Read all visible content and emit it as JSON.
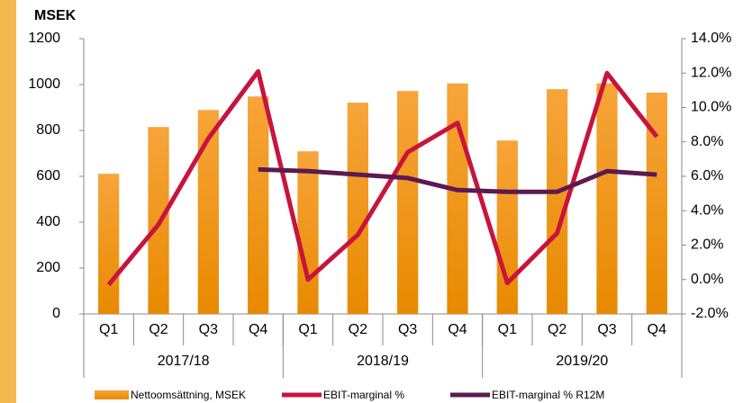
{
  "chart_data": {
    "type": "bar",
    "title": "MSEK",
    "categories": [
      "Q1",
      "Q2",
      "Q3",
      "Q4",
      "Q1",
      "Q2",
      "Q3",
      "Q4",
      "Q1",
      "Q2",
      "Q3",
      "Q4"
    ],
    "groups": [
      "2017/18",
      "2018/19",
      "2019/20"
    ],
    "series": [
      {
        "name": "Nettoomsättning, MSEK",
        "type": "bar",
        "color": "#f39c2a",
        "values": [
          611,
          815,
          889,
          948,
          709,
          921,
          972,
          1005,
          756,
          980,
          1005,
          965
        ]
      },
      {
        "name": "EBIT-marginal %",
        "type": "line",
        "axis": "y2",
        "color": "#c8143c",
        "values": [
          -0.3,
          3.2,
          8.2,
          12.1,
          0.0,
          2.6,
          7.4,
          9.1,
          -0.2,
          2.7,
          12.0,
          8.3
        ]
      },
      {
        "name": "EBIT-marginal % R12M",
        "type": "line",
        "axis": "y2",
        "color": "#5c1a50",
        "values": [
          null,
          null,
          null,
          6.4,
          6.3,
          6.1,
          5.9,
          5.2,
          5.1,
          5.1,
          6.3,
          6.1
        ]
      }
    ],
    "ylim": [
      0,
      1200
    ],
    "yticks": [
      0,
      200,
      400,
      600,
      800,
      1000,
      1200
    ],
    "y2lim": [
      -2,
      14
    ],
    "y2ticks": [
      {
        "value": -2,
        "label": "-2.0%"
      },
      {
        "value": 0,
        "label": "0.0%"
      },
      {
        "value": 2,
        "label": "2.0%"
      },
      {
        "value": 4,
        "label": "4.0%"
      },
      {
        "value": 6,
        "label": "6.0%"
      },
      {
        "value": 8,
        "label": "8.0%"
      },
      {
        "value": 10,
        "label": "10.0%"
      },
      {
        "value": 12,
        "label": "12.0%"
      },
      {
        "value": 14,
        "label": "14.0%"
      }
    ]
  }
}
